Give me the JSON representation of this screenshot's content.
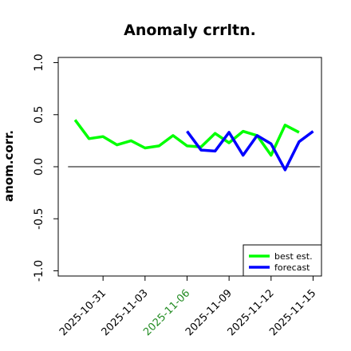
{
  "chart_data": {
    "type": "line",
    "title": "Anomaly crrltn.",
    "ylabel": "anom.corr.",
    "xlabel": "",
    "ylim": [
      -1.05,
      1.05
    ],
    "y_ticks": [
      "-1.0",
      "-0.5",
      "0.0",
      "0.5",
      "1.0"
    ],
    "y_tick_values": [
      -1.0,
      -0.5,
      0.0,
      0.5,
      1.0
    ],
    "x_tick_labels": [
      "2025-10-31",
      "2025-11-03",
      "2025-11-06",
      "2025-11-09",
      "2025-11-12",
      "2025-11-15"
    ],
    "x_tick_values": [
      3,
      6,
      9,
      12,
      15,
      18
    ],
    "x_tick_colors": [
      "#000000",
      "#000000",
      "#228B22",
      "#000000",
      "#000000",
      "#000000"
    ],
    "xlim": [
      -0.2,
      18.6
    ],
    "reference_line": 0.0,
    "series": [
      {
        "name": "best est.",
        "color": "#00ff00",
        "x": [
          1,
          2,
          3,
          4,
          5,
          6,
          7,
          8,
          9,
          10,
          11,
          12,
          13,
          14,
          15,
          16,
          17,
          18
        ],
        "values": [
          0.45,
          0.27,
          0.29,
          0.21,
          0.25,
          0.18,
          0.2,
          0.3,
          0.2,
          0.19,
          0.32,
          0.23,
          0.34,
          0.3,
          0.11,
          0.4,
          0.33,
          null
        ]
      },
      {
        "name": "forecast",
        "color": "#0000ff",
        "x": [
          9,
          10,
          11,
          12,
          13,
          14,
          15,
          16,
          17,
          18
        ],
        "values": [
          0.34,
          0.16,
          0.15,
          0.33,
          0.11,
          0.3,
          0.22,
          -0.03,
          0.24,
          0.34
        ]
      }
    ],
    "legend_position": "bottom-right"
  }
}
